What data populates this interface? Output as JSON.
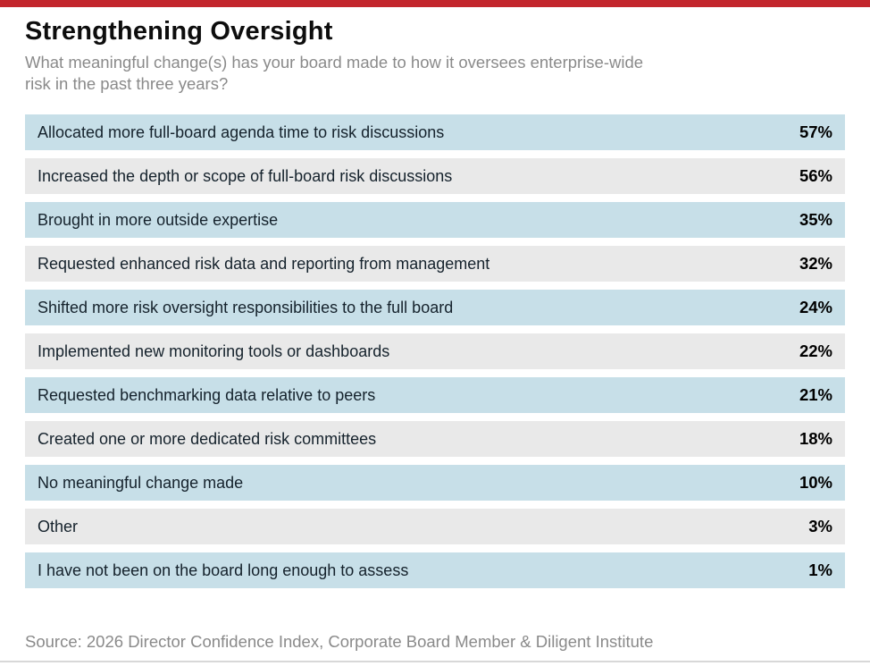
{
  "page": {
    "title": "Strengthening Oversight",
    "subtitle": "What meaningful change(s) has your board made to how it oversees enterprise-wide risk in the past three years?",
    "source": "Source: 2026 Director Confidence Index, Corporate Board Member & Diligent Institute"
  },
  "colors": {
    "accent_bar": "#c3262c",
    "row_blue": "#c7dfe8",
    "row_gray": "#e9e9e9",
    "label_text": "#15222c",
    "value_text": "#000000",
    "muted_text": "#8a8a8a",
    "bottom_rule": "#d8d8d8"
  },
  "chart_data": {
    "type": "table",
    "title": "Strengthening Oversight",
    "subtitle": "What meaningful change(s) has your board made to how it oversees enterprise-wide risk in the past three years?",
    "categories": [
      "Allocated more full-board agenda time to risk discussions",
      "Increased the depth or scope of full-board risk discussions",
      "Brought in more outside expertise",
      "Requested enhanced risk data and reporting from management",
      "Shifted more risk oversight responsibilities to the full board",
      "Implemented new monitoring tools or dashboards",
      "Requested benchmarking data relative to peers",
      "Created one or more dedicated risk committees",
      "No meaningful change made",
      "Other",
      "I have not been on the board long enough to assess"
    ],
    "values": [
      57,
      56,
      35,
      32,
      24,
      22,
      21,
      18,
      10,
      3,
      1
    ],
    "value_labels": [
      "57%",
      "56%",
      "35%",
      "32%",
      "24%",
      "22%",
      "21%",
      "18%",
      "10%",
      "3%",
      "1%"
    ],
    "source": "Source: 2026 Director Confidence Index, Corporate Board Member & Diligent Institute",
    "legend": false,
    "grid": false,
    "row_striping": [
      "blue",
      "gray"
    ],
    "value_alignment": "right"
  }
}
